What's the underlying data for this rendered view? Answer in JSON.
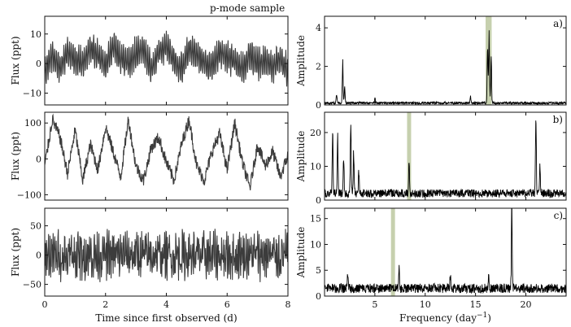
{
  "figure": {
    "title": "p-mode sample",
    "colors": {
      "light_curve": "#3c3c3c",
      "periodogram": "#000000",
      "highlight": "#b8c49a"
    }
  },
  "chart_data": [
    {
      "panel": "light-curve-a",
      "type": "line",
      "ylabel": "Flux (ppt)",
      "xlim": [
        0,
        8
      ],
      "ylim": [
        -14,
        16
      ],
      "yticks": [
        -10,
        0,
        10
      ],
      "xticks": [
        0,
        2,
        4,
        6,
        8
      ],
      "show_xtick_labels": false,
      "series": [
        {
          "x": [
            0,
            0.25,
            0.5,
            0.75,
            1,
            1.25,
            1.5,
            1.75,
            2,
            2.25,
            2.5,
            2.75,
            3,
            3.25,
            3.5,
            3.75,
            4,
            4.25,
            4.5,
            4.75,
            5,
            5.25,
            5.5,
            5.75,
            6,
            6.25,
            6.5,
            6.75,
            7,
            7.25,
            7.5,
            7.75,
            8
          ],
          "values": [
            -3,
            3,
            -2,
            4,
            1,
            0,
            5,
            3,
            -1,
            6,
            2,
            0,
            3,
            5,
            -2,
            4,
            6,
            1,
            -2,
            5,
            3,
            0,
            -1,
            4,
            2,
            1,
            -2,
            3,
            0,
            1,
            -1,
            2,
            -3
          ]
        }
      ],
      "oscillation": {
        "frequency_per_day": 16.3,
        "amplitude_ppt": 5
      }
    },
    {
      "panel": "periodogram-a",
      "type": "line",
      "annotation": "a)",
      "ylabel": "Amplitude",
      "xlim": [
        0,
        24
      ],
      "ylim": [
        0,
        4.6
      ],
      "yticks": [
        0,
        2,
        4
      ],
      "xticks": [
        5,
        10,
        15,
        20
      ],
      "show_xtick_labels": false,
      "highlight_band": [
        16.0,
        16.6
      ],
      "series": [
        {
          "peaks": [
            {
              "x": 1.8,
              "y": 2.45
            },
            {
              "x": 2.0,
              "y": 0.9
            },
            {
              "x": 1.2,
              "y": 0.6
            },
            {
              "x": 16.2,
              "y": 3.2
            },
            {
              "x": 16.35,
              "y": 4.35
            },
            {
              "x": 16.55,
              "y": 3.0
            },
            {
              "x": 14.5,
              "y": 0.4
            },
            {
              "x": 5.0,
              "y": 0.3
            }
          ],
          "noise_level": 0.1
        }
      ]
    },
    {
      "panel": "light-curve-b",
      "type": "line",
      "ylabel": "Flux (ppt)",
      "xlim": [
        0,
        8
      ],
      "ylim": [
        -115,
        130
      ],
      "yticks": [
        -100,
        0,
        100
      ],
      "xticks": [
        0,
        2,
        4,
        6,
        8
      ],
      "show_xtick_labels": false,
      "series": [
        {
          "x": [
            0,
            0.25,
            0.5,
            0.75,
            1,
            1.25,
            1.5,
            1.75,
            2,
            2.25,
            2.5,
            2.75,
            3,
            3.25,
            3.5,
            3.75,
            4,
            4.25,
            4.5,
            4.75,
            5,
            5.25,
            5.5,
            5.75,
            6,
            6.25,
            6.5,
            6.75,
            7,
            7.25,
            7.5,
            7.75,
            8
          ],
          "values": [
            -20,
            110,
            60,
            -40,
            80,
            -60,
            40,
            -30,
            90,
            20,
            -50,
            110,
            -20,
            -60,
            30,
            60,
            -10,
            -60,
            40,
            110,
            -20,
            -60,
            20,
            70,
            -30,
            100,
            -10,
            -80,
            40,
            -20,
            20,
            -50,
            10
          ]
        }
      ]
    },
    {
      "panel": "periodogram-b",
      "type": "line",
      "annotation": "b)",
      "ylabel": "Amplitude",
      "xlim": [
        0,
        24
      ],
      "ylim": [
        0,
        26
      ],
      "yticks": [
        0,
        10,
        20
      ],
      "xticks": [
        5,
        10,
        15,
        20
      ],
      "show_xtick_labels": false,
      "highlight_band": [
        8.2,
        8.6
      ],
      "series": [
        {
          "peaks": [
            {
              "x": 0.8,
              "y": 22
            },
            {
              "x": 1.3,
              "y": 20
            },
            {
              "x": 1.9,
              "y": 12
            },
            {
              "x": 2.6,
              "y": 24
            },
            {
              "x": 2.9,
              "y": 14
            },
            {
              "x": 3.4,
              "y": 8
            },
            {
              "x": 8.4,
              "y": 11.5
            },
            {
              "x": 21.0,
              "y": 25.5
            },
            {
              "x": 21.4,
              "y": 10
            }
          ],
          "noise_level": 2
        }
      ]
    },
    {
      "panel": "light-curve-c",
      "type": "line",
      "ylabel": "Flux (ppt)",
      "xlabel": "Time since first observed (d)",
      "xlim": [
        0,
        8
      ],
      "ylim": [
        -70,
        80
      ],
      "yticks": [
        -50,
        0,
        50
      ],
      "xticks": [
        0,
        2,
        4,
        6,
        8
      ],
      "show_xtick_labels": true,
      "series": [
        {
          "amplitude_ppt": 60,
          "dominant_frequency_per_day": 18.6
        }
      ]
    },
    {
      "panel": "periodogram-c",
      "type": "line",
      "annotation": "c)",
      "ylabel": "Amplitude",
      "xlabel": "Frequency (day",
      "xlabel_exponent": "−1",
      "xlabel_suffix": ")",
      "xlim": [
        0,
        24
      ],
      "ylim": [
        0,
        17
      ],
      "yticks": [
        0,
        5,
        10,
        15
      ],
      "xticks": [
        5,
        10,
        15,
        20
      ],
      "show_xtick_labels": true,
      "highlight_band": [
        6.6,
        7.0
      ],
      "series": [
        {
          "peaks": [
            {
              "x": 18.6,
              "y": 16
            },
            {
              "x": 7.4,
              "y": 4.5
            },
            {
              "x": 2.3,
              "y": 3.5
            },
            {
              "x": 12.5,
              "y": 3.0
            },
            {
              "x": 16.3,
              "y": 3.0
            }
          ],
          "noise_level": 1.5
        }
      ]
    }
  ]
}
